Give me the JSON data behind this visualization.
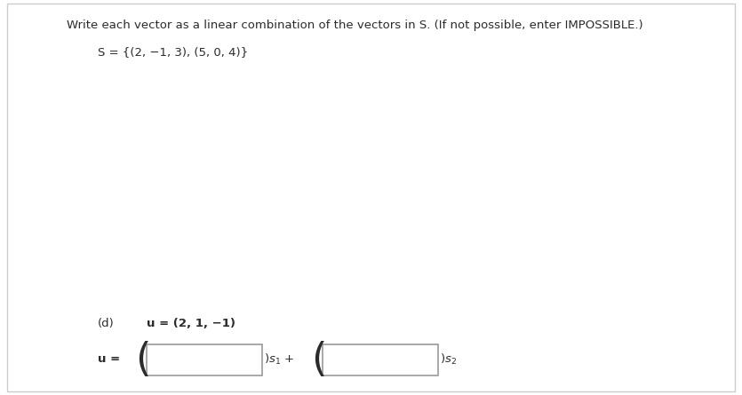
{
  "title_text": "Write each vector as a linear combination of the vectors in S. (If not possible, enter IMPOSSIBLE.)",
  "set_text": "S = {(2, −1, 3), (5, 0, 4)}",
  "part_label": "(d)",
  "u_bold_label": "u = (2, 1, −1)",
  "eq_label": "u =",
  "bg_color": "#ffffff",
  "text_color": "#2b2b2b",
  "box_edge_color": "#999999",
  "title_fontsize": 9.5,
  "body_fontsize": 9.5,
  "frame_color": "#cccccc",
  "frame_linewidth": 1.0
}
